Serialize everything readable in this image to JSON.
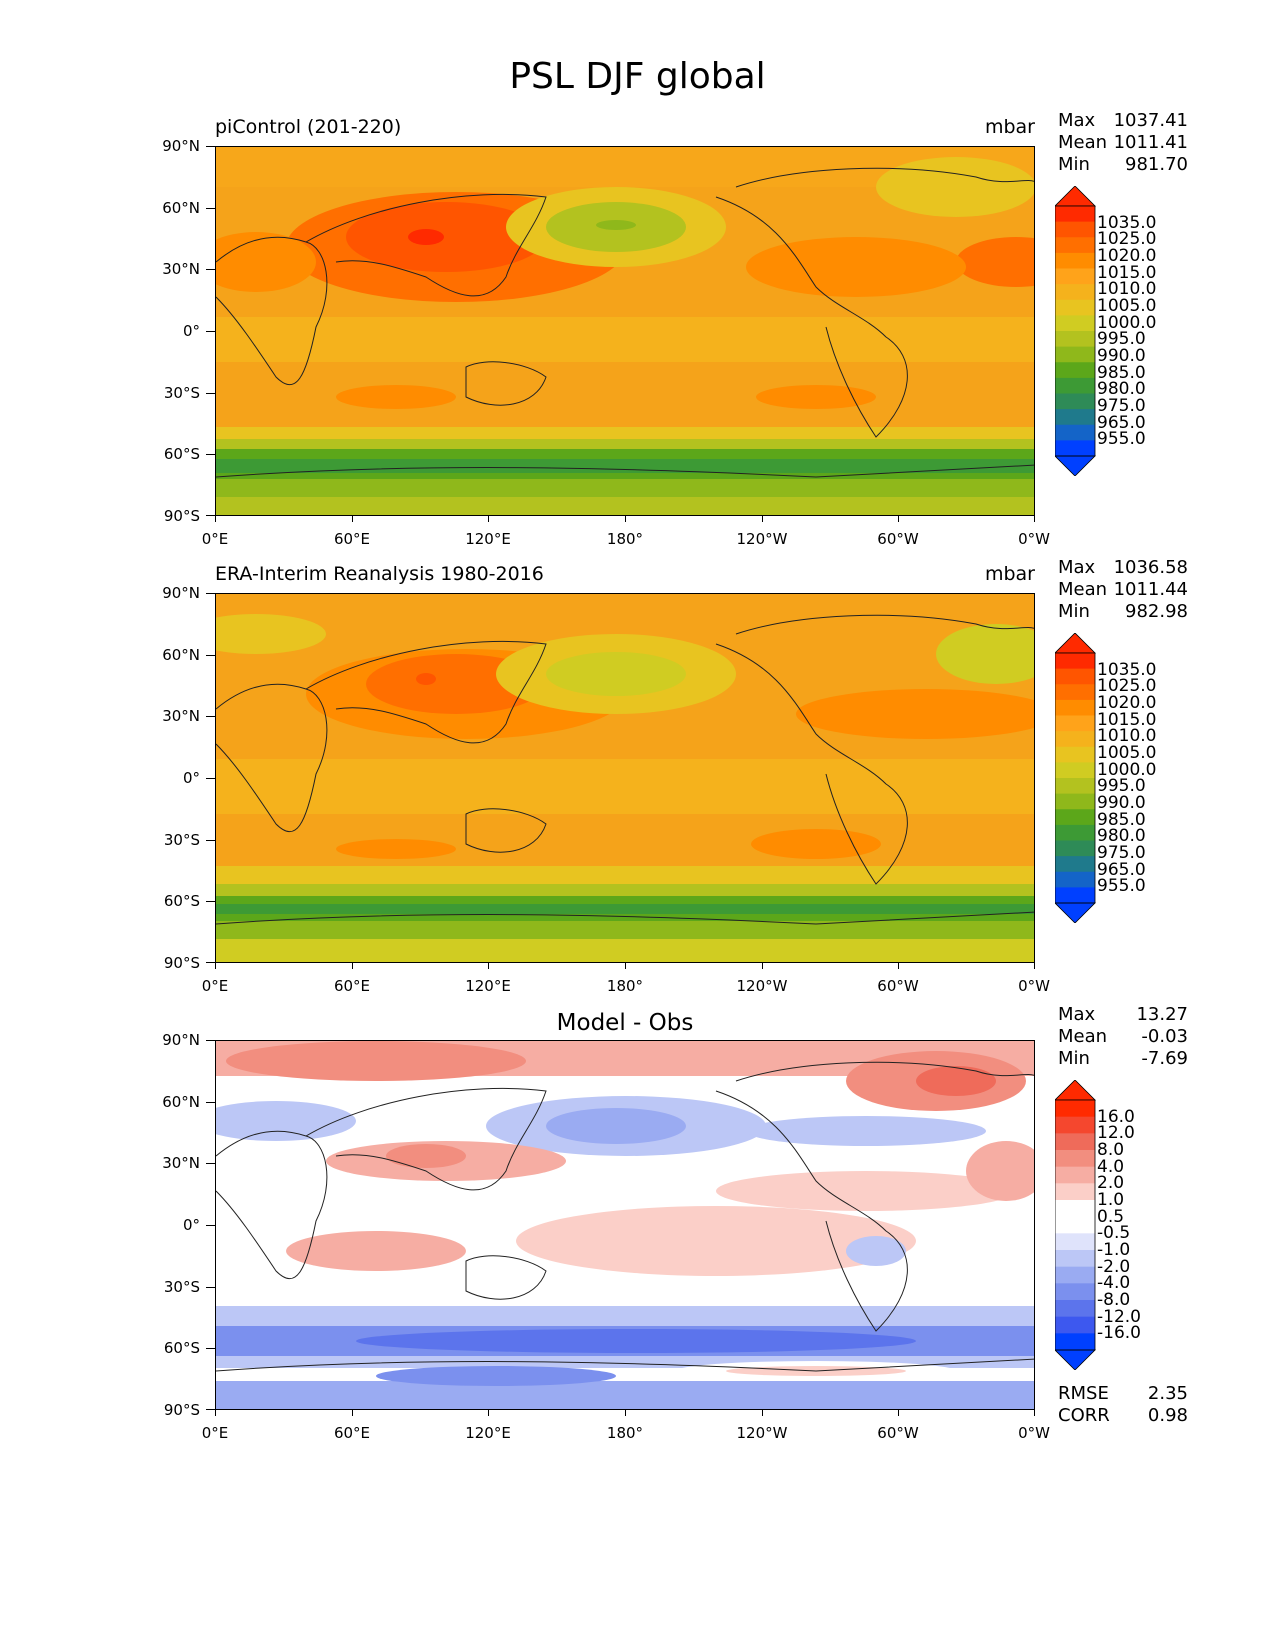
{
  "title": "PSL DJF global",
  "axes": {
    "lat_labels": [
      "90°N",
      "60°N",
      "30°N",
      "0°",
      "30°S",
      "60°S",
      "90°S"
    ],
    "lon_labels": [
      "0°E",
      "60°E",
      "120°E",
      "180°",
      "120°W",
      "60°W",
      "0°W"
    ]
  },
  "panels": [
    {
      "title": "piControl (201-220)",
      "units": "mbar",
      "stats": [
        {
          "label": "Max",
          "value": "1037.41"
        },
        {
          "label": "Mean",
          "value": "1011.41"
        },
        {
          "label": "Min",
          "value": "981.70"
        }
      ],
      "colorbar_labels": [
        "1035.0",
        "1025.0",
        "1020.0",
        "1015.0",
        "1010.0",
        "1005.0",
        "1000.0",
        "995.0",
        "990.0",
        "985.0",
        "980.0",
        "975.0",
        "965.0",
        "955.0"
      ]
    },
    {
      "title": "ERA-Interim Reanalysis 1980-2016",
      "units": "mbar",
      "stats": [
        {
          "label": "Max",
          "value": "1036.58"
        },
        {
          "label": "Mean",
          "value": "1011.44"
        },
        {
          "label": "Min",
          "value": "982.98"
        }
      ],
      "colorbar_labels": [
        "1035.0",
        "1025.0",
        "1020.0",
        "1015.0",
        "1010.0",
        "1005.0",
        "1000.0",
        "995.0",
        "990.0",
        "985.0",
        "980.0",
        "975.0",
        "965.0",
        "955.0"
      ]
    },
    {
      "title": "Model - Obs",
      "units": "",
      "stats": [
        {
          "label": "Max",
          "value": "13.27"
        },
        {
          "label": "Mean",
          "value": "-0.03"
        },
        {
          "label": "Min",
          "value": "-7.69"
        }
      ],
      "colorbar_labels": [
        "16.0",
        "12.0",
        "8.0",
        "4.0",
        "2.0",
        "1.0",
        "0.5",
        "-0.5",
        "-1.0",
        "-2.0",
        "-4.0",
        "-8.0",
        "-12.0",
        "-16.0"
      ],
      "extra": [
        {
          "label": "RMSE",
          "value": "2.35"
        },
        {
          "label": "CORR",
          "value": "0.98"
        }
      ]
    }
  ],
  "colors": {
    "seq_scale": [
      "#ff2a00",
      "#ff5500",
      "#ff6f00",
      "#ff8c00",
      "#ffa31a",
      "#f5b21c",
      "#e8c420",
      "#d0cc22",
      "#b3c21f",
      "#8fb81b",
      "#5ca71a",
      "#3d9a35",
      "#2e8b57",
      "#1f7a8c",
      "#1464c8",
      "#0040ff"
    ],
    "div_scale": [
      "#ff2a00",
      "#f5472e",
      "#ef6b5a",
      "#f28e7f",
      "#f6ada3",
      "#fbcfc8",
      "#ffffff",
      "#ffffff",
      "#dfe3fb",
      "#bcc7f6",
      "#9aabf2",
      "#7b90ee",
      "#5c74ec",
      "#3d58ef",
      "#0040ff"
    ]
  }
}
